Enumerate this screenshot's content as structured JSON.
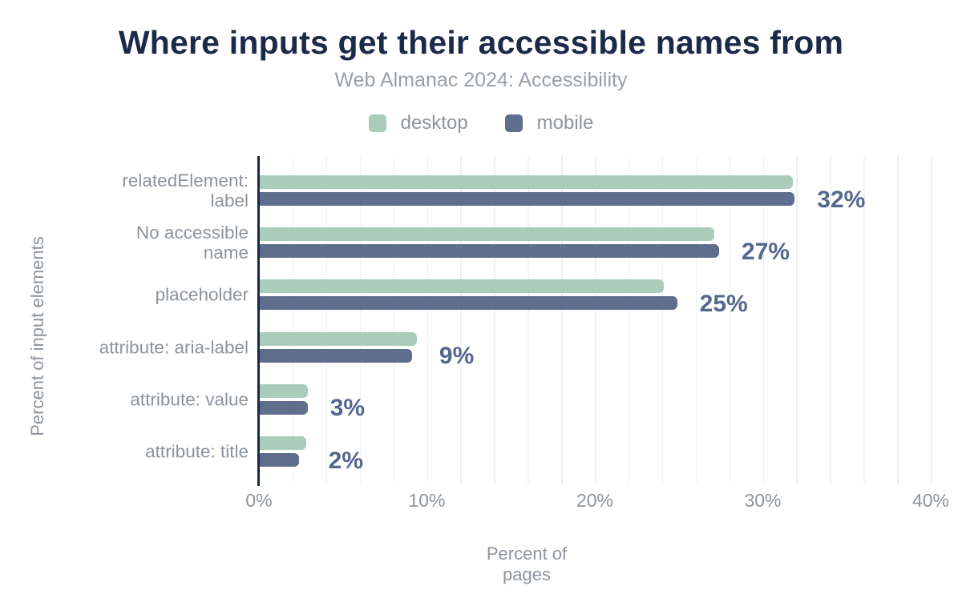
{
  "chart_data": {
    "type": "bar",
    "orientation": "horizontal",
    "title": "Where inputs get their accessible names from",
    "subtitle": "Web Almanac 2024: Accessibility",
    "xlabel": "Percent of pages",
    "ylabel": "Percent of input elements",
    "xlim": [
      0,
      40
    ],
    "x_ticks": [
      "0%",
      "10%",
      "20%",
      "30%",
      "40%"
    ],
    "x_tick_values": [
      0,
      10,
      20,
      30,
      40
    ],
    "grid": "vertical gridlines every 2%",
    "legend_position": "top-center",
    "categories": [
      "relatedElement: label",
      "No accessible name",
      "placeholder",
      "attribute: aria-label",
      "attribute: value",
      "attribute: title"
    ],
    "category_lines": [
      "relatedElement:\nlabel",
      "No accessible\nname",
      "placeholder",
      "attribute: aria-label",
      "attribute: value",
      "attribute: title"
    ],
    "series": [
      {
        "name": "desktop",
        "color": "#a9cdba",
        "values": [
          31.8,
          27.1,
          24.1,
          9.4,
          2.9,
          2.8
        ]
      },
      {
        "name": "mobile",
        "color": "#5f6e8c",
        "values": [
          31.9,
          27.4,
          24.9,
          9.1,
          2.9,
          2.4
        ]
      }
    ],
    "data_labels": [
      "32%",
      "27%",
      "25%",
      "9%",
      "3%",
      "2%"
    ],
    "colors": {
      "title": "#1b2a49",
      "subtitle": "#99a0a8",
      "axis_line": "#16294a",
      "desktop_bar": "#a9cdba",
      "mobile_bar": "#5f6e8c",
      "value_label": "#55678d",
      "muted_text": "#8e949c",
      "background": "#ffffff"
    }
  }
}
